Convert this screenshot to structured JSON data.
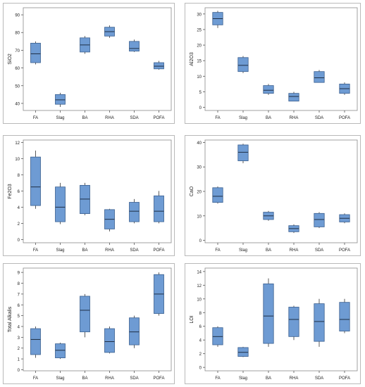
{
  "chart_data": [
    {
      "type": "box",
      "ylabel": "SiO2",
      "categories": [
        "FA",
        "Slag",
        "BA",
        "RHA",
        "SDA",
        "POFA"
      ],
      "yticks": [
        40,
        50,
        60,
        70,
        80,
        90
      ],
      "ylim": [
        36,
        94
      ],
      "boxes": [
        {
          "category": "FA",
          "min": 62,
          "q1": 63,
          "median": 68,
          "q3": 74,
          "max": 75
        },
        {
          "category": "Slag",
          "min": 38,
          "q1": 39.5,
          "median": 42,
          "q3": 45,
          "max": 46
        },
        {
          "category": "BA",
          "min": 68,
          "q1": 69,
          "median": 73,
          "q3": 77,
          "max": 78
        },
        {
          "category": "RHA",
          "min": 77,
          "q1": 78,
          "median": 80.5,
          "q3": 83,
          "max": 84
        },
        {
          "category": "SDA",
          "min": 69,
          "q1": 69.5,
          "median": 71,
          "q3": 75,
          "max": 76
        },
        {
          "category": "POFA",
          "min": 59,
          "q1": 59.5,
          "median": 61,
          "q3": 63,
          "max": 64
        }
      ],
      "box_color": "#6e9bd3"
    },
    {
      "type": "box",
      "ylabel": "Al2O3",
      "categories": [
        "FA",
        "Slag",
        "BA",
        "RHA",
        "SDA",
        "POFA"
      ],
      "yticks": [
        0,
        5,
        10,
        15,
        20,
        25,
        30
      ],
      "ylim": [
        -1,
        32
      ],
      "boxes": [
        {
          "category": "FA",
          "min": 25.5,
          "q1": 26.5,
          "median": 28.5,
          "q3": 30.5,
          "max": 31
        },
        {
          "category": "Slag",
          "min": 11,
          "q1": 11.5,
          "median": 13.5,
          "q3": 16,
          "max": 16.5
        },
        {
          "category": "BA",
          "min": 4,
          "q1": 4.5,
          "median": 5.5,
          "q3": 7,
          "max": 7.5
        },
        {
          "category": "RHA",
          "min": 2,
          "q1": 2,
          "median": 3.5,
          "q3": 4.5,
          "max": 5
        },
        {
          "category": "SDA",
          "min": 8,
          "q1": 8,
          "median": 9.5,
          "q3": 11.5,
          "max": 12
        },
        {
          "category": "POFA",
          "min": 4,
          "q1": 4.5,
          "median": 6,
          "q3": 7.5,
          "max": 8
        }
      ],
      "box_color": "#6e9bd3"
    },
    {
      "type": "box",
      "ylabel": "Fe2O3",
      "categories": [
        "FA",
        "Slag",
        "BA",
        "RHA",
        "SDA",
        "POFA"
      ],
      "yticks": [
        0,
        2,
        4,
        6,
        8,
        10,
        12
      ],
      "ylim": [
        -0.4,
        12.3
      ],
      "boxes": [
        {
          "category": "FA",
          "min": 3.8,
          "q1": 4.2,
          "median": 6.5,
          "q3": 10.2,
          "max": 11
        },
        {
          "category": "Slag",
          "min": 1.9,
          "q1": 2.2,
          "median": 4,
          "q3": 6.5,
          "max": 7
        },
        {
          "category": "BA",
          "min": 3,
          "q1": 3.2,
          "median": 5,
          "q3": 6.7,
          "max": 7
        },
        {
          "category": "RHA",
          "min": 1,
          "q1": 1.3,
          "median": 2.5,
          "q3": 3.7,
          "max": 3.8
        },
        {
          "category": "SDA",
          "min": 2,
          "q1": 2.2,
          "median": 3.5,
          "q3": 4.6,
          "max": 5
        },
        {
          "category": "POFA",
          "min": 2,
          "q1": 2.2,
          "median": 3.5,
          "q3": 5.4,
          "max": 6
        }
      ],
      "box_color": "#6e9bd3"
    },
    {
      "type": "box",
      "ylabel": "CaO",
      "categories": [
        "FA",
        "Slag",
        "BA",
        "RHA",
        "SDA",
        "POFA"
      ],
      "yticks": [
        0,
        10,
        20,
        30,
        40
      ],
      "ylim": [
        -1,
        41
      ],
      "boxes": [
        {
          "category": "FA",
          "min": 15,
          "q1": 15.5,
          "median": 18,
          "q3": 21.5,
          "max": 22
        },
        {
          "category": "Slag",
          "min": 31.5,
          "q1": 32.5,
          "median": 36,
          "q3": 39,
          "max": 39.5
        },
        {
          "category": "BA",
          "min": 8,
          "q1": 8.5,
          "median": 10,
          "q3": 11.5,
          "max": 12
        },
        {
          "category": "RHA",
          "min": 3,
          "q1": 3.5,
          "median": 4.8,
          "q3": 6,
          "max": 6.5
        },
        {
          "category": "SDA",
          "min": 5,
          "q1": 5.5,
          "median": 8.5,
          "q3": 11,
          "max": 11.5
        },
        {
          "category": "POFA",
          "min": 7,
          "q1": 7.5,
          "median": 9,
          "q3": 10.5,
          "max": 11
        }
      ],
      "box_color": "#6e9bd3"
    },
    {
      "type": "box",
      "ylabel": "Total Alkalis",
      "categories": [
        "FA",
        "Slag",
        "BA",
        "RHA",
        "SDA",
        "POFA"
      ],
      "yticks": [
        0,
        1,
        2,
        3,
        4,
        5,
        6,
        7,
        8,
        9
      ],
      "ylim": [
        -0.1,
        9.4
      ],
      "boxes": [
        {
          "category": "FA",
          "min": 1.1,
          "q1": 1.4,
          "median": 2.8,
          "q3": 3.8,
          "max": 4
        },
        {
          "category": "Slag",
          "min": 1,
          "q1": 1.1,
          "median": 1.8,
          "q3": 2.4,
          "max": 2.5
        },
        {
          "category": "BA",
          "min": 3,
          "q1": 3.5,
          "median": 5.5,
          "q3": 6.8,
          "max": 7
        },
        {
          "category": "RHA",
          "min": 1.5,
          "q1": 1.6,
          "median": 2.6,
          "q3": 3.8,
          "max": 4
        },
        {
          "category": "SDA",
          "min": 2,
          "q1": 2.3,
          "median": 3.5,
          "q3": 4.8,
          "max": 5
        },
        {
          "category": "POFA",
          "min": 5,
          "q1": 5.2,
          "median": 7,
          "q3": 8.8,
          "max": 9
        }
      ],
      "box_color": "#6e9bd3"
    },
    {
      "type": "box",
      "ylabel": "LOI",
      "categories": [
        "FA",
        "Slag",
        "BA",
        "RHA",
        "SDA",
        "POFA"
      ],
      "yticks": [
        0,
        2,
        4,
        6,
        8,
        10,
        12,
        14
      ],
      "ylim": [
        -0.5,
        14.5
      ],
      "boxes": [
        {
          "category": "FA",
          "min": 3,
          "q1": 3.3,
          "median": 4.5,
          "q3": 5.8,
          "max": 6
        },
        {
          "category": "Slag",
          "min": 1.5,
          "q1": 1.6,
          "median": 2.2,
          "q3": 2.9,
          "max": 3
        },
        {
          "category": "BA",
          "min": 3,
          "q1": 3.5,
          "median": 7.5,
          "q3": 12.2,
          "max": 13
        },
        {
          "category": "RHA",
          "min": 4,
          "q1": 4.5,
          "median": 7,
          "q3": 8.8,
          "max": 9
        },
        {
          "category": "SDA",
          "min": 3,
          "q1": 3.8,
          "median": 6.7,
          "q3": 9.3,
          "max": 10
        },
        {
          "category": "POFA",
          "min": 5,
          "q1": 5.3,
          "median": 7,
          "q3": 9.5,
          "max": 10
        }
      ],
      "box_color": "#6e9bd3"
    }
  ]
}
